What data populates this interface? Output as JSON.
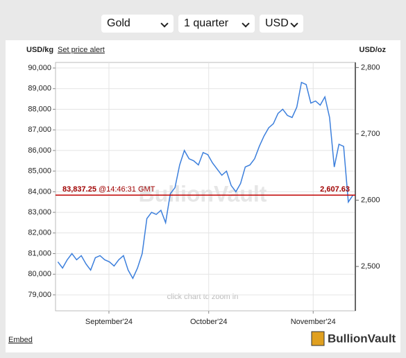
{
  "ui": {
    "selectors": [
      "Gold",
      "1 quarter",
      "USD"
    ],
    "alert_link": "Set price alert",
    "embed": "Embed",
    "logo": "BullionVault"
  },
  "chart_data": {
    "type": "line",
    "y_label": "USD/kg",
    "y2_label": "USD/oz",
    "watermark": "BullionVault",
    "hint": "click chart to zoom in",
    "series": [
      {
        "name": "Gold",
        "color": "#3c7fdc",
        "values": [
          80600,
          80300,
          80700,
          81000,
          80700,
          80900,
          80500,
          80200,
          80800,
          80900,
          80700,
          80600,
          80400,
          80700,
          80900,
          80200,
          79800,
          80300,
          81000,
          82700,
          83000,
          82900,
          83100,
          82500,
          83900,
          84200,
          85300,
          86000,
          85600,
          85500,
          85300,
          85900,
          85800,
          85400,
          85100,
          84800,
          85000,
          84300,
          84000,
          84400,
          85200,
          85300,
          85600,
          86200,
          86700,
          87100,
          87300,
          87800,
          88000,
          87700,
          87600,
          88100,
          89300,
          89200,
          88300,
          88400,
          88200,
          88600,
          87600,
          85200,
          86300,
          86200,
          83500,
          83837.25
        ]
      }
    ],
    "current": {
      "value": 83837.25,
      "label": "83,837.25"
    },
    "time": "@14:46:31 GMT",
    "current_oz": {
      "value": 2607.63,
      "label": "2,607.63"
    },
    "xlim": [
      -0.5,
      63.5
    ],
    "xticks": [
      {
        "value": 10.9,
        "label": "September'24"
      },
      {
        "value": 32.2,
        "label": "October'24"
      },
      {
        "value": 54.5,
        "label": "November'24"
      }
    ],
    "ylim": [
      78225,
      90270
    ],
    "yticks": [
      {
        "value": 79000,
        "label": "79,000"
      },
      {
        "value": 80000,
        "label": "80,000"
      },
      {
        "value": 81000,
        "label": "81,000"
      },
      {
        "value": 82000,
        "label": "82,000"
      },
      {
        "value": 83000,
        "label": "83,000"
      },
      {
        "value": 84000,
        "label": "84,000"
      },
      {
        "value": 85000,
        "label": "85,000"
      },
      {
        "value": 86000,
        "label": "86,000"
      },
      {
        "value": 87000,
        "label": "87,000"
      },
      {
        "value": 88000,
        "label": "88,000"
      },
      {
        "value": 89000,
        "label": "89,000"
      },
      {
        "value": 90000,
        "label": "90,000"
      }
    ],
    "y2lim": [
      2433.1,
      2807.7
    ],
    "y2ticks": [
      {
        "value": 2500,
        "label": "2,500"
      },
      {
        "value": 2600,
        "label": "2,600"
      },
      {
        "value": 2700,
        "label": "2,700"
      },
      {
        "value": 2800,
        "label": "2,800"
      }
    ],
    "grid": true
  }
}
